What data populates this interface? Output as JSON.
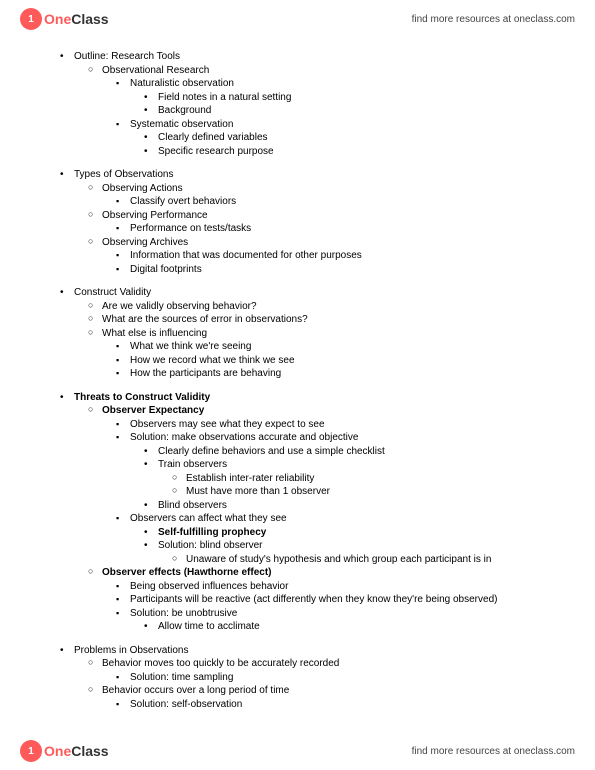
{
  "brand": {
    "logo_letter": "1",
    "name_one": "One",
    "name_class": "Class",
    "resources_text": "find more resources at oneclass.com"
  },
  "outline": [
    {
      "lvl": 0,
      "b": "disc",
      "t": "Outline: Research Tools",
      "bold": false
    },
    {
      "lvl": 1,
      "b": "circle",
      "t": "Observational Research",
      "bold": false
    },
    {
      "lvl": 2,
      "b": "square",
      "t": "Naturalistic observation",
      "bold": false
    },
    {
      "lvl": 3,
      "b": "disc",
      "t": "Field notes in a natural setting",
      "bold": false
    },
    {
      "lvl": 3,
      "b": "disc",
      "t": "Background",
      "bold": false
    },
    {
      "lvl": 2,
      "b": "square",
      "t": "Systematic observation",
      "bold": false
    },
    {
      "lvl": 3,
      "b": "disc",
      "t": "Clearly defined variables",
      "bold": false
    },
    {
      "lvl": 3,
      "b": "disc",
      "t": "Specific research purpose",
      "bold": false
    },
    {
      "lvl": 0,
      "b": "disc",
      "t": "Types of Observations",
      "bold": false,
      "gap": true
    },
    {
      "lvl": 1,
      "b": "circle",
      "t": "Observing Actions",
      "bold": false
    },
    {
      "lvl": 2,
      "b": "square",
      "t": "Classify overt behaviors",
      "bold": false
    },
    {
      "lvl": 1,
      "b": "circle",
      "t": "Observing Performance",
      "bold": false
    },
    {
      "lvl": 2,
      "b": "square",
      "t": "Performance on tests/tasks",
      "bold": false
    },
    {
      "lvl": 1,
      "b": "circle",
      "t": "Observing Archives",
      "bold": false
    },
    {
      "lvl": 2,
      "b": "square",
      "t": "Information that was documented for other purposes",
      "bold": false
    },
    {
      "lvl": 2,
      "b": "square",
      "t": "Digital footprints",
      "bold": false
    },
    {
      "lvl": 0,
      "b": "disc",
      "t": "Construct Validity",
      "bold": false,
      "gap": true
    },
    {
      "lvl": 1,
      "b": "circle",
      "t": "Are we validly observing behavior?",
      "bold": false
    },
    {
      "lvl": 1,
      "b": "circle",
      "t": "What are the sources of error in observations?",
      "bold": false
    },
    {
      "lvl": 1,
      "b": "circle",
      "t": "What else is influencing",
      "bold": false
    },
    {
      "lvl": 2,
      "b": "square",
      "t": "What we think we're seeing",
      "bold": false
    },
    {
      "lvl": 2,
      "b": "square",
      "t": "How we record what we think we see",
      "bold": false
    },
    {
      "lvl": 2,
      "b": "square",
      "t": "How the participants are behaving",
      "bold": false
    },
    {
      "lvl": 0,
      "b": "disc",
      "t": "Threats to Construct Validity",
      "bold": true,
      "gap": true
    },
    {
      "lvl": 1,
      "b": "circle",
      "t": "Observer Expectancy",
      "bold": true
    },
    {
      "lvl": 2,
      "b": "square",
      "t": "Observers may see what they expect to see",
      "bold": false
    },
    {
      "lvl": 2,
      "b": "square",
      "t": "Solution: make observations accurate and objective",
      "bold": false
    },
    {
      "lvl": 3,
      "b": "disc",
      "t": "Clearly define behaviors and use a simple checklist",
      "bold": false
    },
    {
      "lvl": 3,
      "b": "disc",
      "t": "Train observers",
      "bold": false
    },
    {
      "lvl": 4,
      "b": "circle",
      "t": "Establish inter-rater reliability",
      "bold": false
    },
    {
      "lvl": 4,
      "b": "circle",
      "t": "Must have more than 1 observer",
      "bold": false
    },
    {
      "lvl": 3,
      "b": "disc",
      "t": "Blind observers",
      "bold": false
    },
    {
      "lvl": 2,
      "b": "square",
      "t": "Observers can affect what they see",
      "bold": false
    },
    {
      "lvl": 3,
      "b": "disc",
      "t": "Self-fulfilling prophecy",
      "bold": true
    },
    {
      "lvl": 3,
      "b": "disc",
      "t": "Solution: blind observer",
      "bold": false
    },
    {
      "lvl": 4,
      "b": "circle",
      "t": "Unaware of study's hypothesis and which group each participant is in",
      "bold": false
    },
    {
      "lvl": 1,
      "b": "circle",
      "t": "Observer effects (Hawthorne effect)",
      "bold": true
    },
    {
      "lvl": 2,
      "b": "square",
      "t": "Being observed influences behavior",
      "bold": false
    },
    {
      "lvl": 2,
      "b": "square",
      "t": "Participants will be reactive (act differently when they know they're being observed)",
      "bold": false
    },
    {
      "lvl": 2,
      "b": "square",
      "t": "Solution: be unobtrusive",
      "bold": false
    },
    {
      "lvl": 3,
      "b": "disc",
      "t": "Allow time to acclimate",
      "bold": false
    },
    {
      "lvl": 0,
      "b": "disc",
      "t": "Problems in Observations",
      "bold": false,
      "gap": true
    },
    {
      "lvl": 1,
      "b": "circle",
      "t": "Behavior moves too quickly to be accurately recorded",
      "bold": false
    },
    {
      "lvl": 2,
      "b": "square",
      "t": "Solution: time sampling",
      "bold": false
    },
    {
      "lvl": 1,
      "b": "circle",
      "t": "Behavior occurs over a long period of time",
      "bold": false
    },
    {
      "lvl": 2,
      "b": "square",
      "t": "Solution: self-observation",
      "bold": false
    }
  ]
}
